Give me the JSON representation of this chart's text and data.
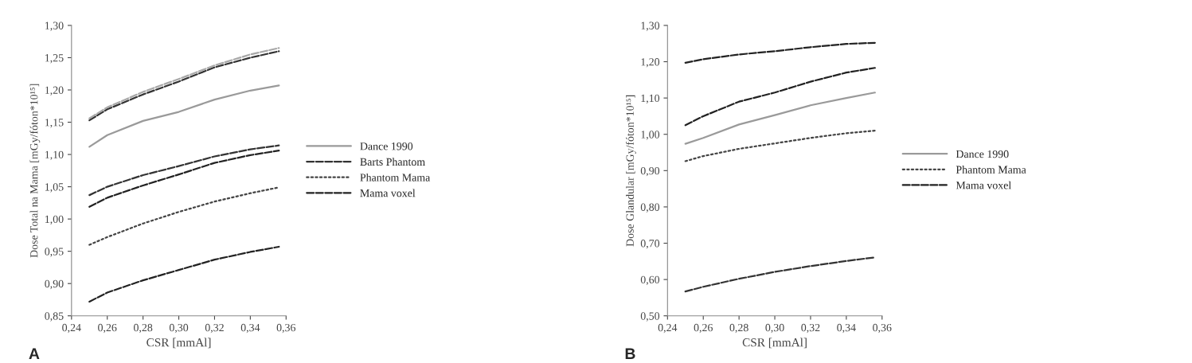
{
  "chart_data": [
    {
      "type": "line",
      "xlabel": "CSR [mmAl]",
      "ylabel": "Dose Total na Mama [mGy/fóton*10¹⁵]",
      "annotations": [
        "A"
      ],
      "legend": "right",
      "grid": false,
      "x": [
        0.25,
        0.26,
        0.28,
        0.3,
        0.32,
        0.34,
        0.356
      ],
      "xlim": [
        0.24,
        0.36
      ],
      "xticks": [
        {
          "value": 0.24,
          "label": "0,24"
        },
        {
          "value": 0.26,
          "label": "0,26"
        },
        {
          "value": 0.28,
          "label": "0,28"
        },
        {
          "value": 0.3,
          "label": "0,30"
        },
        {
          "value": 0.32,
          "label": "0,32"
        },
        {
          "value": 0.34,
          "label": "0,34"
        },
        {
          "value": 0.36,
          "label": "0,36"
        }
      ],
      "ylim": [
        0.85,
        1.3
      ],
      "yticks": [
        {
          "value": 0.85,
          "label": "0,85"
        },
        {
          "value": 0.9,
          "label": "0,90"
        },
        {
          "value": 0.95,
          "label": "0,95"
        },
        {
          "value": 1.0,
          "label": "1,00"
        },
        {
          "value": 1.05,
          "label": "1,05"
        },
        {
          "value": 1.1,
          "label": "1,10"
        },
        {
          "value": 1.15,
          "label": "1,15"
        },
        {
          "value": 1.2,
          "label": "1,20"
        },
        {
          "value": 1.25,
          "label": "1,25"
        },
        {
          "value": 1.3,
          "label": "1,30"
        }
      ],
      "series": [
        {
          "name": "Dance 1990",
          "color": "#9a9a9a",
          "line_style": "solid",
          "values": [
            1.112,
            1.13,
            1.152,
            1.166,
            1.185,
            1.199,
            1.207
          ]
        },
        {
          "color": "#222222",
          "line_style": "dashed",
          "values": [
            0.872,
            0.886,
            0.905,
            0.921,
            0.937,
            0.949,
            0.957
          ]
        },
        {
          "name": "Barts Phantom",
          "color": "#333333",
          "line_style": "dashed",
          "values": [
            1.153,
            1.17,
            1.193,
            1.213,
            1.235,
            1.25,
            1.26
          ]
        },
        {
          "color": "#333333",
          "line_style": "dashed",
          "values": [
            1.037,
            1.05,
            1.068,
            1.082,
            1.097,
            1.108,
            1.114
          ]
        },
        {
          "color": "#a8a8a8",
          "line_style": "dashed",
          "values": [
            1.156,
            1.173,
            1.197,
            1.217,
            1.238,
            1.255,
            1.265
          ]
        },
        {
          "name": "Phantom Mama",
          "color": "#444444",
          "line_style": "dotted",
          "values": [
            0.96,
            0.972,
            0.993,
            1.011,
            1.027,
            1.04,
            1.049
          ]
        },
        {
          "name": "Mama voxel",
          "color": "#222222",
          "line_style": "dashed",
          "values": [
            1.019,
            1.033,
            1.052,
            1.069,
            1.087,
            1.099,
            1.106
          ]
        }
      ]
    },
    {
      "type": "line",
      "xlabel": "CSR [mmAl]",
      "ylabel": "Dose Glandular [mGy/fóton*10¹⁵]",
      "annotations": [
        "B"
      ],
      "legend": "right",
      "grid": false,
      "x": [
        0.25,
        0.26,
        0.28,
        0.3,
        0.32,
        0.34,
        0.356
      ],
      "xlim": [
        0.24,
        0.36
      ],
      "xticks": [
        {
          "value": 0.24,
          "label": "0,24"
        },
        {
          "value": 0.26,
          "label": "0,26"
        },
        {
          "value": 0.28,
          "label": "0,28"
        },
        {
          "value": 0.3,
          "label": "0,30"
        },
        {
          "value": 0.32,
          "label": "0,32"
        },
        {
          "value": 0.34,
          "label": "0,34"
        },
        {
          "value": 0.36,
          "label": "0,36"
        }
      ],
      "ylim": [
        0.5,
        1.3
      ],
      "yticks": [
        {
          "value": 0.5,
          "label": "0,50"
        },
        {
          "value": 0.6,
          "label": "0,60"
        },
        {
          "value": 0.7,
          "label": "0,70"
        },
        {
          "value": 0.8,
          "label": "0,80"
        },
        {
          "value": 0.9,
          "label": "0,90"
        },
        {
          "value": 1.0,
          "label": "1,00"
        },
        {
          "value": 1.1,
          "label": "1,10"
        },
        {
          "value": 1.2,
          "label": "1,20"
        },
        {
          "value": 1.3,
          "label": "1,30"
        }
      ],
      "series": [
        {
          "name": "Dance 1990",
          "color": "#9a9a9a",
          "line_style": "solid",
          "values": [
            0.974,
            0.99,
            1.027,
            1.053,
            1.08,
            1.1,
            1.115
          ]
        },
        {
          "color": "#222222",
          "line_style": "dashed",
          "values": [
            1.197,
            1.207,
            1.22,
            1.229,
            1.24,
            1.249,
            1.252
          ]
        },
        {
          "color": "#333333",
          "line_style": "dashed",
          "values": [
            0.567,
            0.58,
            0.602,
            0.621,
            0.637,
            0.651,
            0.661
          ]
        },
        {
          "name": "Phantom Mama",
          "color": "#444444",
          "line_style": "dotted",
          "values": [
            0.926,
            0.94,
            0.96,
            0.975,
            0.99,
            1.003,
            1.01
          ]
        },
        {
          "name": "Mama voxel",
          "color": "#222222",
          "line_style": "dashed",
          "values": [
            1.025,
            1.05,
            1.09,
            1.115,
            1.145,
            1.17,
            1.183
          ]
        }
      ]
    }
  ]
}
